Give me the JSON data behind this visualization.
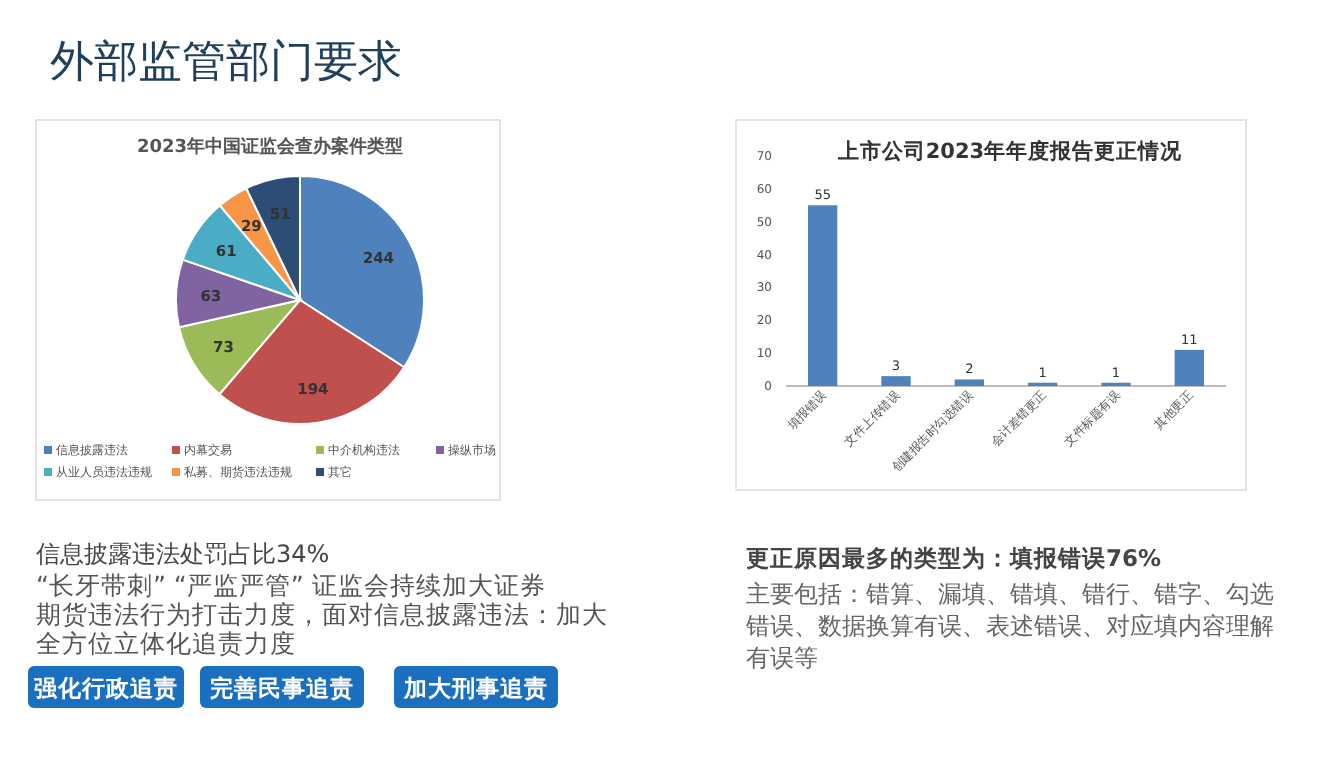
{
  "chart_data": [
    {
      "type": "other",
      "title": "外部监管部门要求"
    },
    {
      "type": "pie",
      "title": "2023年中国证监会查办案件类型",
      "categories": [
        "信息披露违法",
        "内幕交易",
        "中介机构违法",
        "操纵市场",
        "从业人员违法违规",
        "私募、期货违法违规",
        "其它"
      ],
      "values": [
        244,
        194,
        73,
        63,
        61,
        29,
        51
      ],
      "colors": [
        "#4f81bd",
        "#c0504d",
        "#9bbb59",
        "#8064a2",
        "#4bacc6",
        "#f79646",
        "#2c4d75"
      ],
      "data_labels": true,
      "legend": "bottom",
      "annotations": [
        "信息披露违法处罚占比34%",
        "“长牙带刺” “严监严管” 证监会持续加大证券期货违法行为打击力度，面对信息披露违法：加大全方位立体化追责力度",
        "强化行政追责",
        "完善民事追责",
        "加大刑事追责"
      ]
    },
    {
      "type": "bar",
      "title": "上市公司2023年年度报告更正情况",
      "categories": [
        "填报错误",
        "文件上传错误",
        "创建报告时勾选错误",
        "会计差错更正",
        "文件标题有误",
        "其他更正"
      ],
      "values": [
        55,
        3,
        2,
        1,
        1,
        11
      ],
      "color": "#4f81bd",
      "ylim": [
        0,
        70
      ],
      "yticks": [
        0,
        10,
        20,
        30,
        40,
        50,
        60,
        70
      ],
      "data_labels": true,
      "annotations": [
        "更正原因最多的类型为：填报错误76%",
        "主要包括：错算、漏填、错填、错行、错字、勾选错误、数据换算有误、表述错误、对应填内容理解有误等"
      ]
    }
  ]
}
